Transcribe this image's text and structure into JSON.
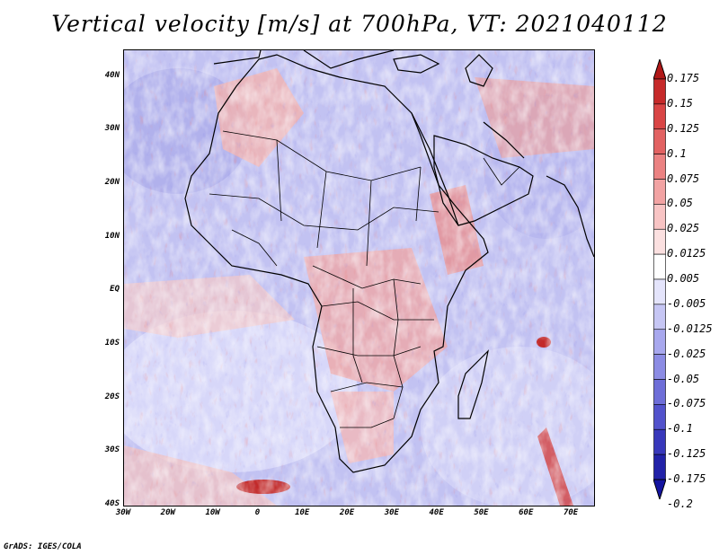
{
  "title": "Vertical velocity [m/s] at 700hPa, VT: 2021040112",
  "credit": "GrADS: IGES/COLA",
  "map": {
    "lon_range": [
      -30,
      75
    ],
    "lat_range": [
      -40,
      45
    ],
    "lat_labels": [
      {
        "lat": 40,
        "text": "40N"
      },
      {
        "lat": 30,
        "text": "30N"
      },
      {
        "lat": 20,
        "text": "20N"
      },
      {
        "lat": 10,
        "text": "10N"
      },
      {
        "lat": 0,
        "text": "EQ"
      },
      {
        "lat": -10,
        "text": "10S"
      },
      {
        "lat": -20,
        "text": "20S"
      },
      {
        "lat": -30,
        "text": "30S"
      },
      {
        "lat": -40,
        "text": "40S"
      }
    ],
    "lon_labels": [
      {
        "lon": -30,
        "text": "30W"
      },
      {
        "lon": -20,
        "text": "20W"
      },
      {
        "lon": -10,
        "text": "10W"
      },
      {
        "lon": 0,
        "text": "0"
      },
      {
        "lon": 10,
        "text": "10E"
      },
      {
        "lon": 20,
        "text": "20E"
      },
      {
        "lon": 30,
        "text": "30E"
      },
      {
        "lon": 40,
        "text": "40E"
      },
      {
        "lon": 50,
        "text": "50E"
      },
      {
        "lon": 60,
        "text": "60E"
      },
      {
        "lon": 70,
        "text": "70E"
      }
    ]
  },
  "colorbar": {
    "labels": [
      "0.175",
      "0.15",
      "0.125",
      "0.1",
      "0.075",
      "0.05",
      "0.025",
      "0.0125",
      "0.005",
      "-0.005",
      "-0.0125",
      "-0.025",
      "-0.05",
      "-0.075",
      "-0.1",
      "-0.125",
      "-0.175",
      "-0.2"
    ],
    "colors": [
      "#b01818",
      "#c62a2a",
      "#d94545",
      "#e26262",
      "#eb8282",
      "#f2a3a3",
      "#f8c4c4",
      "#fbe0e0",
      "#ffffff",
      "#e4e4fb",
      "#c6c6f4",
      "#a8a8ee",
      "#8c8ce4",
      "#6e6ed8",
      "#5252cc",
      "#3838bb",
      "#2222a8",
      "#1414a0"
    ]
  }
}
